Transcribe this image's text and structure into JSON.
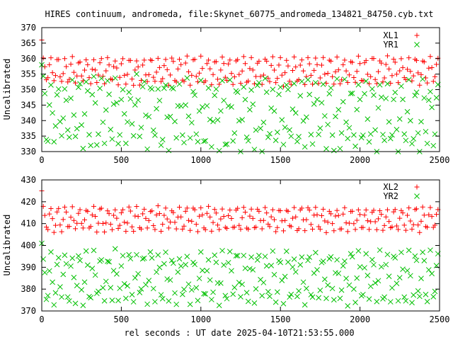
{
  "title": "HIRES continuum, andromeda, file:Skynet_60775_andromeda_134821_84750.cyb.txt",
  "xlabel": "rel seconds : UT date 2025-04-10T21:53:55.000",
  "colors": {
    "red": "#ff0000",
    "green": "#00c000",
    "axis": "#000000",
    "grid": "#a0a0a0"
  },
  "chart_data": [
    {
      "type": "scatter",
      "ylabel": "Uncalibrated",
      "xlim": [
        0,
        2500
      ],
      "ylim": [
        330,
        370
      ],
      "xticks": [
        "0",
        "500",
        "1000",
        "1500",
        "2000",
        "2500"
      ],
      "xtick_values": [
        0,
        500,
        1000,
        1500,
        2000,
        2500
      ],
      "yticks": [
        "330",
        "335",
        "340",
        "345",
        "350",
        "355",
        "360",
        "365",
        "370"
      ],
      "ytick_values": [
        330,
        335,
        340,
        345,
        350,
        355,
        360,
        365,
        370
      ],
      "legend_position": "top-right",
      "series": [
        {
          "name": "XL1",
          "marker": "plus",
          "color": "#ff0000",
          "pattern": {
            "x_start": 0,
            "x_end": 2490,
            "samples": 260,
            "period": 45,
            "low": 352,
            "high": 360,
            "trend_end": 356,
            "start_value": 366
          }
        },
        {
          "name": "YR1",
          "marker": "cross",
          "color": "#00c000",
          "pattern": {
            "x_start": 0,
            "x_end": 2490,
            "samples": 260,
            "period": 45,
            "low": 333,
            "high": 353,
            "trend_end": 340,
            "start_value": 358
          }
        }
      ]
    },
    {
      "type": "scatter",
      "ylabel": "Uncalibrated",
      "xlim": [
        0,
        2500
      ],
      "ylim": [
        370,
        430
      ],
      "xticks": [
        "0",
        "500",
        "1000",
        "1500",
        "2000",
        "2500"
      ],
      "xtick_values": [
        0,
        500,
        1000,
        1500,
        2000,
        2500
      ],
      "yticks": [
        "370",
        "380",
        "390",
        "400",
        "410",
        "420",
        "430"
      ],
      "ytick_values": [
        370,
        380,
        390,
        400,
        410,
        420,
        430
      ],
      "legend_position": "top-right",
      "series": [
        {
          "name": "XL2",
          "marker": "plus",
          "color": "#ff0000",
          "pattern": {
            "x_start": 0,
            "x_end": 2490,
            "samples": 260,
            "period": 45,
            "low": 407,
            "high": 417,
            "trend_end": 412,
            "start_value": 425
          }
        },
        {
          "name": "YR2",
          "marker": "cross",
          "color": "#00c000",
          "pattern": {
            "x_start": 0,
            "x_end": 2490,
            "samples": 260,
            "period": 45,
            "low": 375,
            "high": 396,
            "trend_end": 385,
            "start_value": 401
          }
        }
      ]
    }
  ]
}
